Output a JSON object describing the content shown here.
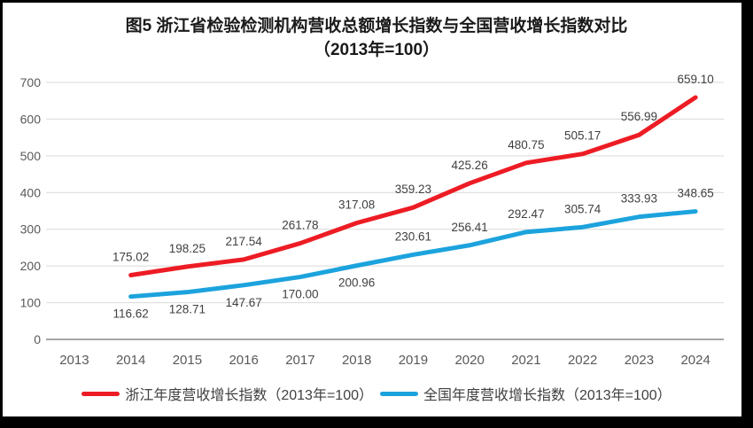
{
  "title": {
    "line1": "图5  浙江省检验检测机构营收总额增长指数与全国营收增长指数对比",
    "line2": "（2013年=100）"
  },
  "chart_data": {
    "type": "line",
    "title": "图5 浙江省检验检测机构营收总额增长指数与全国营收增长指数对比（2013年=100）",
    "x_categories": [
      "2013",
      "2014",
      "2015",
      "2016",
      "2017",
      "2018",
      "2019",
      "2020",
      "2021",
      "2022",
      "2023",
      "2024"
    ],
    "series": [
      {
        "name": "浙江年度营收增长指数（2013年=100）",
        "color": "#ED1C24",
        "start_index": 1,
        "values": [
          175.02,
          198.25,
          217.54,
          261.78,
          317.08,
          359.23,
          425.26,
          480.75,
          505.17,
          556.99,
          659.1
        ],
        "labels": [
          "175.02",
          "198.25",
          "217.54",
          "261.78",
          "317.08",
          "359.23",
          "425.26",
          "480.75",
          "505.17",
          "556.99",
          "659.10"
        ],
        "label_positions": [
          "above",
          "above",
          "above",
          "above",
          "above",
          "above",
          "above",
          "above",
          "above",
          "above",
          "above"
        ]
      },
      {
        "name": "全国年度营收增长指数（2013年=100）",
        "color": "#1CA3DD",
        "start_index": 1,
        "values": [
          116.62,
          128.71,
          147.67,
          170.0,
          200.96,
          230.61,
          256.41,
          292.47,
          305.74,
          333.93,
          348.65
        ],
        "labels": [
          "116.62",
          "128.71",
          "147.67",
          "170.00",
          "200.96",
          "230.61",
          "256.41",
          "292.47",
          "305.74",
          "333.93",
          "348.65"
        ],
        "label_positions": [
          "below",
          "below",
          "below",
          "below",
          "below",
          "above",
          "above",
          "above",
          "above",
          "above",
          "above"
        ]
      }
    ],
    "ylim": [
      0,
      700
    ],
    "ytick_step": 100,
    "ytick_labels": [
      "0",
      "100",
      "200",
      "300",
      "400",
      "500",
      "600",
      "700"
    ],
    "grid": "horizontal",
    "legend_position": "bottom"
  },
  "colors": {
    "grid": "#D9D9D9",
    "axis": "#A6A6A6",
    "tick_text": "#595959",
    "data_label_text": "#404040",
    "frame": "#000000",
    "background": "#FFFFFF"
  }
}
